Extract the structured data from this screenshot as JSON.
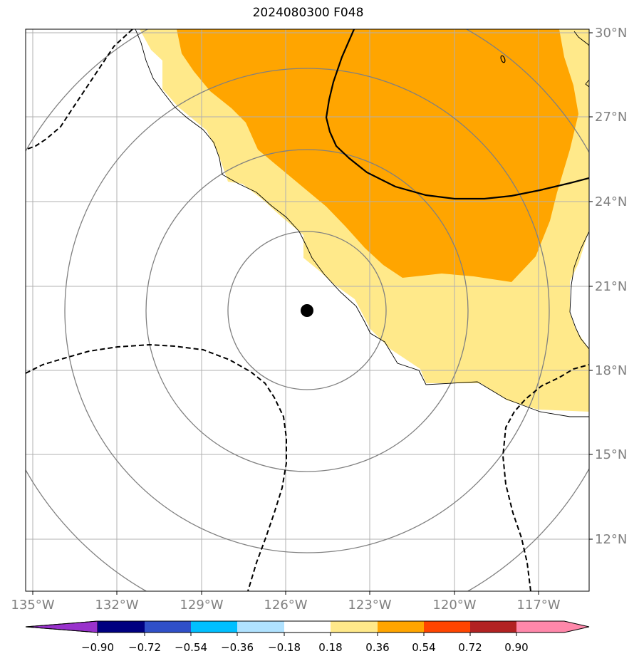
{
  "title": "2024080300 F048",
  "map": {
    "lon_ticks": [
      "135°W",
      "132°W",
      "129°W",
      "126°W",
      "123°W",
      "120°W",
      "117°W"
    ],
    "lat_ticks": [
      "30°N",
      "27°N",
      "24°N",
      "21°N",
      "18°N",
      "15°N",
      "12°N"
    ],
    "storm_center": {
      "lon": -125.3,
      "lat": 20.1
    },
    "colors": {
      "frame": "#000000",
      "grid": "#b0b0b0",
      "axis_label": "#808080",
      "circle": "#808080",
      "coast": "#000000",
      "contour": "#000000"
    }
  },
  "colorbar": {
    "ticks": [
      "−0.90",
      "−0.72",
      "−0.54",
      "−0.36",
      "−0.18",
      "0.18",
      "0.36",
      "0.54",
      "0.72",
      "0.90"
    ],
    "colors": [
      "#9932cc",
      "#000080",
      "#3050c8",
      "#00bfff",
      "#b0e2ff",
      "#ffffff",
      "#ffe98a",
      "#ffa500",
      "#ff4500",
      "#b22222",
      "#ff88aa"
    ]
  }
}
